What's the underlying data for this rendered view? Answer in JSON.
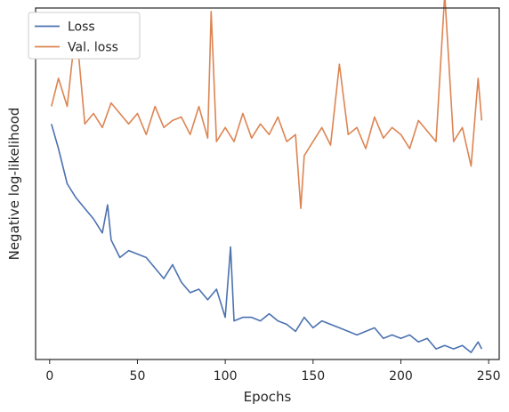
{
  "chart_data": {
    "type": "line",
    "xlabel": "Epochs",
    "ylabel": "Negative log-likelihood",
    "xlim": [
      -8,
      256
    ],
    "ylim": [
      0,
      1
    ],
    "xticks": [
      0,
      50,
      100,
      150,
      200,
      250
    ],
    "y_tick_labels_shown": false,
    "grid": false,
    "legend_position": "top-left",
    "series": [
      {
        "name": "Loss",
        "color": "#4C72B0",
        "x": [
          1,
          5,
          10,
          15,
          20,
          25,
          30,
          33,
          35,
          40,
          45,
          50,
          55,
          60,
          65,
          70,
          75,
          80,
          85,
          90,
          95,
          100,
          103,
          105,
          110,
          115,
          120,
          125,
          130,
          135,
          140,
          145,
          150,
          155,
          160,
          165,
          170,
          175,
          180,
          185,
          190,
          195,
          200,
          205,
          210,
          215,
          220,
          225,
          230,
          235,
          240,
          244,
          246
        ],
        "y": [
          0.67,
          0.6,
          0.5,
          0.46,
          0.43,
          0.4,
          0.36,
          0.44,
          0.34,
          0.29,
          0.31,
          0.3,
          0.29,
          0.26,
          0.23,
          0.27,
          0.22,
          0.19,
          0.2,
          0.17,
          0.2,
          0.12,
          0.32,
          0.11,
          0.12,
          0.12,
          0.11,
          0.13,
          0.11,
          0.1,
          0.08,
          0.12,
          0.09,
          0.11,
          0.1,
          0.09,
          0.08,
          0.07,
          0.08,
          0.09,
          0.06,
          0.07,
          0.06,
          0.07,
          0.05,
          0.06,
          0.03,
          0.04,
          0.03,
          0.04,
          0.02,
          0.05,
          0.03
        ]
      },
      {
        "name": "Val. loss",
        "color": "#DD8452",
        "x": [
          1,
          5,
          10,
          15,
          20,
          25,
          30,
          35,
          40,
          45,
          50,
          55,
          60,
          65,
          70,
          75,
          80,
          85,
          90,
          92,
          95,
          100,
          105,
          110,
          115,
          120,
          125,
          130,
          135,
          140,
          143,
          145,
          150,
          155,
          160,
          165,
          170,
          175,
          180,
          185,
          190,
          195,
          200,
          205,
          210,
          215,
          220,
          225,
          230,
          235,
          240,
          244,
          246
        ],
        "y": [
          0.72,
          0.8,
          0.72,
          0.95,
          0.67,
          0.7,
          0.66,
          0.73,
          0.7,
          0.67,
          0.7,
          0.64,
          0.72,
          0.66,
          0.68,
          0.69,
          0.64,
          0.72,
          0.63,
          0.99,
          0.62,
          0.66,
          0.62,
          0.7,
          0.63,
          0.67,
          0.64,
          0.69,
          0.62,
          0.64,
          0.43,
          0.58,
          0.62,
          0.66,
          0.61,
          0.84,
          0.64,
          0.66,
          0.6,
          0.69,
          0.63,
          0.66,
          0.64,
          0.6,
          0.68,
          0.65,
          0.62,
          1.04,
          0.62,
          0.66,
          0.55,
          0.8,
          0.68
        ]
      }
    ]
  }
}
